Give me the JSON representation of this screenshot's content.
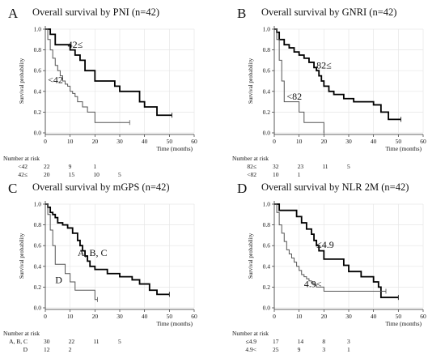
{
  "chart_data": [
    {
      "type": "line",
      "panel": "A",
      "title": "Overall survival by PNI (n=42)",
      "xlabel": "Time (months)",
      "ylabel": "Survival probability",
      "xlim": [
        0,
        60
      ],
      "ylim": [
        0,
        1.0
      ],
      "xticks": [
        0,
        10,
        20,
        30,
        40,
        50,
        60
      ],
      "yticks": [
        0.0,
        0.2,
        0.4,
        0.6,
        0.8,
        1.0
      ],
      "grid": true,
      "series": [
        {
          "name": "42≤",
          "label_at": [
            9,
            0.82
          ],
          "color": "#000000",
          "width": 1.8,
          "x": [
            0,
            2,
            4,
            6,
            10,
            12,
            14,
            16,
            19,
            20,
            25,
            28,
            30,
            33,
            38,
            40,
            45,
            51
          ],
          "y": [
            1.0,
            0.95,
            0.85,
            0.85,
            0.8,
            0.75,
            0.7,
            0.6,
            0.6,
            0.5,
            0.5,
            0.45,
            0.4,
            0.4,
            0.3,
            0.25,
            0.17,
            0.17
          ]
        },
        {
          "name": "<42",
          "label_at": [
            1,
            0.48
          ],
          "color": "#555555",
          "width": 1.0,
          "x": [
            0,
            1,
            2,
            3,
            4,
            5,
            6,
            7,
            8,
            9,
            10,
            11,
            12,
            13,
            15,
            17,
            20,
            34
          ],
          "y": [
            1.0,
            0.9,
            0.8,
            0.72,
            0.65,
            0.6,
            0.55,
            0.5,
            0.47,
            0.45,
            0.4,
            0.38,
            0.35,
            0.3,
            0.25,
            0.2,
            0.1,
            0.1
          ]
        }
      ],
      "risk_table": {
        "title": "Number at risk",
        "rows": [
          {
            "label": "<42",
            "values": [
              "22",
              "9",
              "1",
              ""
            ]
          },
          {
            "label": "42≤",
            "values": [
              "20",
              "15",
              "10",
              "5"
            ]
          }
        ]
      }
    },
    {
      "type": "line",
      "panel": "B",
      "title": "Overall survival by GNRI (n=42)",
      "xlabel": "Time (months)",
      "ylabel": "Survival probability",
      "xlim": [
        0,
        60
      ],
      "ylim": [
        0,
        1.0
      ],
      "xticks": [
        0,
        10,
        20,
        30,
        40,
        50,
        60
      ],
      "yticks": [
        0.0,
        0.2,
        0.4,
        0.6,
        0.8,
        1.0
      ],
      "grid": true,
      "series": [
        {
          "name": "82≤",
          "label_at": [
            17,
            0.62
          ],
          "color": "#000000",
          "width": 1.8,
          "x": [
            0,
            1,
            2,
            4,
            6,
            8,
            10,
            12,
            14,
            16,
            17,
            18,
            19,
            20,
            22,
            24,
            28,
            32,
            40,
            43,
            46,
            51
          ],
          "y": [
            1.0,
            0.97,
            0.9,
            0.85,
            0.82,
            0.78,
            0.75,
            0.72,
            0.68,
            0.63,
            0.6,
            0.55,
            0.5,
            0.45,
            0.4,
            0.37,
            0.33,
            0.3,
            0.27,
            0.2,
            0.13,
            0.13
          ]
        },
        {
          "name": "<82",
          "label_at": [
            5,
            0.32
          ],
          "color": "#555555",
          "width": 1.0,
          "x": [
            0,
            1,
            2,
            3,
            4,
            7,
            10,
            12,
            16,
            20
          ],
          "y": [
            1.0,
            0.9,
            0.7,
            0.5,
            0.3,
            0.3,
            0.2,
            0.1,
            0.1,
            0.0
          ]
        }
      ],
      "risk_table": {
        "title": "Number at risk",
        "rows": [
          {
            "label": "82≤",
            "values": [
              "32",
              "23",
              "11",
              "5"
            ]
          },
          {
            "label": "<82",
            "values": [
              "10",
              "1",
              "",
              ""
            ]
          }
        ]
      }
    },
    {
      "type": "line",
      "panel": "C",
      "title": "Overall survival by mGPS (n=42)",
      "xlabel": "Time (months)",
      "ylabel": "Survival probability",
      "xlim": [
        0,
        60
      ],
      "ylim": [
        0,
        1.0
      ],
      "xticks": [
        0,
        10,
        20,
        30,
        40,
        50,
        60
      ],
      "yticks": [
        0.0,
        0.2,
        0.4,
        0.6,
        0.8,
        1.0
      ],
      "grid": true,
      "series": [
        {
          "name": "A, B, C",
          "label_at": [
            13,
            0.5
          ],
          "color": "#000000",
          "width": 1.8,
          "x": [
            0,
            1,
            2,
            3,
            4,
            5,
            7,
            9,
            11,
            13,
            14,
            15,
            16,
            17,
            18,
            20,
            25,
            30,
            35,
            38,
            42,
            45,
            50
          ],
          "y": [
            1.0,
            0.97,
            0.92,
            0.9,
            0.87,
            0.82,
            0.8,
            0.77,
            0.72,
            0.65,
            0.6,
            0.55,
            0.5,
            0.45,
            0.4,
            0.37,
            0.33,
            0.3,
            0.27,
            0.23,
            0.17,
            0.13,
            0.13
          ]
        },
        {
          "name": "D",
          "label_at": [
            4,
            0.24
          ],
          "color": "#555555",
          "width": 1.0,
          "x": [
            0,
            1,
            2,
            3,
            4,
            6,
            8,
            10,
            12,
            15,
            20,
            21
          ],
          "y": [
            1.0,
            0.9,
            0.75,
            0.6,
            0.42,
            0.42,
            0.33,
            0.25,
            0.17,
            0.17,
            0.08,
            0.08
          ]
        }
      ],
      "risk_table": {
        "title": "Number at risk",
        "rows": [
          {
            "label": "A, B, C",
            "values": [
              "30",
              "22",
              "11",
              "5"
            ]
          },
          {
            "label": "D",
            "values": [
              "12",
              "2",
              "",
              ""
            ]
          }
        ]
      }
    },
    {
      "type": "line",
      "panel": "D",
      "title": "Overall survival by NLR 2M (n=42)",
      "xlabel": "Time (months)",
      "ylabel": "Survival probability",
      "xlim": [
        0,
        60
      ],
      "ylim": [
        0,
        1.0
      ],
      "xticks": [
        0,
        10,
        20,
        30,
        40,
        50,
        60
      ],
      "yticks": [
        0.0,
        0.2,
        0.4,
        0.6,
        0.8,
        1.0
      ],
      "grid": true,
      "series": [
        {
          "name": "≤4.9",
          "label_at": [
            17,
            0.58
          ],
          "color": "#000000",
          "width": 1.8,
          "x": [
            0,
            2,
            5,
            9,
            11,
            13,
            15,
            16,
            17,
            18,
            20,
            22,
            25,
            28,
            30,
            35,
            40,
            42,
            43,
            50
          ],
          "y": [
            1.0,
            0.94,
            0.94,
            0.88,
            0.82,
            0.76,
            0.71,
            0.65,
            0.6,
            0.55,
            0.47,
            0.47,
            0.47,
            0.41,
            0.35,
            0.3,
            0.25,
            0.2,
            0.1,
            0.1
          ]
        },
        {
          "name": "4.9<",
          "label_at": [
            12,
            0.2
          ],
          "color": "#555555",
          "width": 1.0,
          "x": [
            0,
            1,
            2,
            3,
            4,
            5,
            6,
            7,
            8,
            9,
            10,
            11,
            12,
            13,
            14,
            15,
            16,
            17,
            20,
            25,
            30,
            35,
            40,
            45
          ],
          "y": [
            1.0,
            0.92,
            0.8,
            0.72,
            0.64,
            0.56,
            0.52,
            0.48,
            0.44,
            0.4,
            0.36,
            0.32,
            0.3,
            0.28,
            0.26,
            0.24,
            0.22,
            0.2,
            0.16,
            0.16,
            0.16,
            0.16,
            0.16,
            0.16
          ]
        }
      ],
      "risk_table": {
        "title": "Number at risk",
        "rows": [
          {
            "label": "≤4.9",
            "values": [
              "17",
              "14",
              "8",
              "3"
            ]
          },
          {
            "label": "4.9<",
            "values": [
              "25",
              "9",
              "3",
              "1"
            ]
          }
        ]
      }
    }
  ]
}
